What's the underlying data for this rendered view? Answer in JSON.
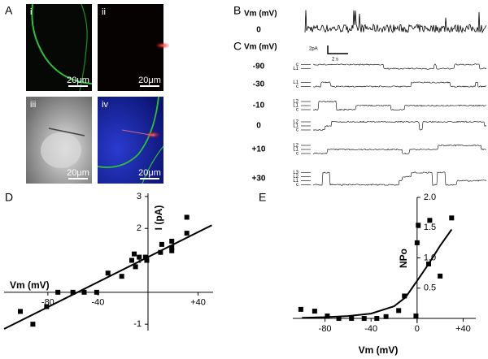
{
  "panel_labels": [
    "A",
    "B",
    "C",
    "D",
    "E"
  ],
  "images": [
    {
      "label": "i",
      "scale": "20μm"
    },
    {
      "label": "ii",
      "scale": "20μm"
    },
    {
      "label": "iii",
      "scale": "20μm"
    },
    {
      "label": "iv",
      "scale": "20μm"
    }
  ],
  "trace_b": {
    "axis_label": "Vm (mV)",
    "level": "0",
    "scale_current": "2pA",
    "scale_time": "2 s"
  },
  "trace_c": {
    "axis_label": "Vm (mV)",
    "rows": [
      {
        "vm": "-90",
        "levels": [
          "c",
          "L1"
        ]
      },
      {
        "vm": "-30",
        "levels": [
          "L1",
          "c"
        ]
      },
      {
        "vm": "-10",
        "levels": [
          "L2",
          "L1",
          "c"
        ]
      },
      {
        "vm": "0",
        "levels": [
          "L2",
          "L1",
          "c"
        ]
      },
      {
        "vm": "+10",
        "levels": [
          "L2",
          "L1",
          "c"
        ]
      },
      {
        "vm": "+30",
        "levels": [
          "L3",
          "L2",
          "L1",
          "c"
        ]
      }
    ]
  },
  "chart_data": [
    {
      "type": "scatter",
      "xlabel": "Vm (mV)",
      "ylabel": "I (pA)",
      "xlim": [
        -115,
        52
      ],
      "ylim": [
        -1.2,
        3.1
      ],
      "xticks": [
        -80,
        -40,
        {
          "value": 40,
          "label": "+40"
        }
      ],
      "yticks": [
        3,
        2,
        1,
        -1
      ],
      "series": [
        {
          "color": "#000000",
          "marker": "square",
          "x": [
            -102,
            -92,
            -81,
            -72,
            -60,
            -51,
            -41,
            -32,
            -21,
            -13,
            -11,
            -10,
            -7,
            -2,
            -1,
            10,
            11,
            19,
            19,
            19,
            31,
            31
          ],
          "values": [
            -0.6,
            -1.0,
            -0.45,
            0,
            0,
            0,
            0,
            0.6,
            0.5,
            1.0,
            1.2,
            0.8,
            1.1,
            1.1,
            1.0,
            1.25,
            1.5,
            1.6,
            1.4,
            1.3,
            1.85,
            2.35
          ]
        },
        {
          "color": "#000000",
          "marker": "line",
          "x": [
            -115,
            51
          ],
          "values": [
            -1.15,
            2.1
          ]
        }
      ]
    },
    {
      "type": "scatter",
      "xlabel": "Vm (mV)",
      "ylabel": "NPo",
      "xlim": [
        -108,
        51
      ],
      "ylim": [
        -0.08,
        2.0
      ],
      "xticks": [
        -80,
        -40,
        0,
        {
          "value": 40,
          "label": "+40"
        }
      ],
      "yticks": [
        {
          "value": 2,
          "label": "2.0"
        },
        1.5,
        {
          "value": 1,
          "label": "1.0"
        },
        0.5
      ],
      "series": [
        {
          "color": "#000000",
          "marker": "square",
          "x": [
            -101,
            -89,
            -78,
            -68,
            -57,
            -46,
            -35,
            -27,
            -16,
            -11,
            -1,
            0,
            1,
            10,
            11,
            20,
            30
          ],
          "values": [
            0.15,
            0.12,
            0.04,
            0,
            0,
            0,
            0,
            0.03,
            0.13,
            0.37,
            0.04,
            1.25,
            1.54,
            0.9,
            1.62,
            0.7,
            1.66
          ]
        },
        {
          "color": "#000000",
          "marker": "line",
          "x": [
            -100,
            -80,
            -60,
            -40,
            -20,
            -10,
            0,
            10,
            20,
            30
          ],
          "values": [
            0.01,
            0.02,
            0.04,
            0.08,
            0.2,
            0.35,
            0.62,
            0.9,
            1.2,
            1.47
          ]
        }
      ]
    }
  ]
}
